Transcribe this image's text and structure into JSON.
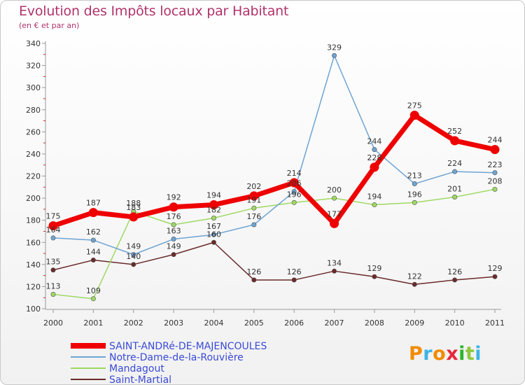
{
  "chart_data": {
    "type": "line",
    "title": "Evolution des Impôts locaux par Habitant",
    "subtitle": "(en € et par an)",
    "categories": [
      "2000",
      "2001",
      "2002",
      "2003",
      "2004",
      "2005",
      "2006",
      "2007",
      "2008",
      "2009",
      "2010",
      "2011"
    ],
    "ylim": [
      100,
      340
    ],
    "yticks": [
      100,
      120,
      140,
      160,
      180,
      200,
      220,
      240,
      260,
      280,
      300,
      320,
      340
    ],
    "grid": false,
    "legend_position": "bottom-left",
    "series": [
      {
        "name": "SAINT-ANDRé-DE-MAJENCOULES",
        "color": "#ee0000",
        "values": [
          175,
          187,
          183,
          192,
          194,
          202,
          214,
          177,
          228,
          275,
          252,
          244
        ]
      },
      {
        "name": "Notre-Dame-de-la-Rouvière",
        "color": "#6ea4d2",
        "values": [
          164,
          162,
          149,
          163,
          167,
          176,
          206,
          329,
          244,
          213,
          224,
          223
        ]
      },
      {
        "name": "Mandagout",
        "color": "#9ed964",
        "values": [
          113,
          109,
          188,
          176,
          182,
          191,
          196,
          200,
          194,
          196,
          201,
          208
        ]
      },
      {
        "name": "Saint-Martial",
        "color": "#6b2a2a",
        "values": [
          135,
          144,
          140,
          149,
          160,
          126,
          126,
          134,
          129,
          122,
          126,
          129
        ]
      }
    ]
  },
  "logo": {
    "text": "Proxiti"
  }
}
